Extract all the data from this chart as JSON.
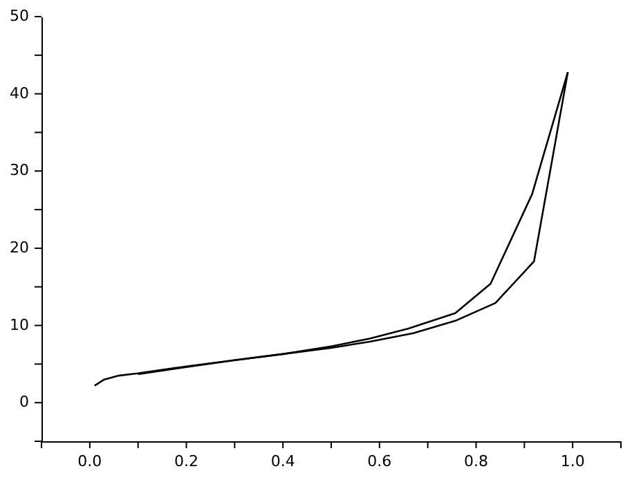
{
  "chart_data": {
    "type": "line",
    "series": [
      {
        "color": "#000000",
        "x": [
          0.01,
          0.03,
          0.06,
          0.1,
          0.2,
          0.3,
          0.4,
          0.5,
          0.58,
          0.66,
          0.757,
          0.83,
          0.916,
          0.99
        ],
        "values": [
          2.2,
          3.0,
          3.5,
          3.8,
          4.7,
          5.5,
          6.3,
          7.3,
          8.3,
          9.6,
          11.6,
          15.4,
          27,
          42.8
        ]
      },
      {
        "color": "#000000",
        "x": [
          0.1,
          0.2,
          0.3,
          0.4,
          0.5,
          0.58,
          0.67,
          0.757,
          0.84,
          0.92,
          0.99
        ],
        "values": [
          3.7,
          4.6,
          5.5,
          6.3,
          7.1,
          7.9,
          9.0,
          10.6,
          12.9,
          18.3,
          42.8
        ]
      }
    ],
    "xlim": [
      -0.1,
      1.1
    ],
    "xticks": [
      {
        "value": -0.1,
        "label": null
      },
      {
        "value": 0,
        "label": "0.0"
      },
      {
        "value": 0.1,
        "label": null
      },
      {
        "value": 0.2,
        "label": "0.2"
      },
      {
        "value": 0.3,
        "label": null
      },
      {
        "value": 0.4,
        "label": "0.4"
      },
      {
        "value": 0.5,
        "label": null
      },
      {
        "value": 0.6,
        "label": "0.6"
      },
      {
        "value": 0.7,
        "label": null
      },
      {
        "value": 0.8,
        "label": "0.8"
      },
      {
        "value": 0.9,
        "label": null
      },
      {
        "value": 1,
        "label": "1.0"
      },
      {
        "value": 1.1,
        "label": null
      }
    ],
    "ylim": [
      -5,
      50
    ],
    "yticks": [
      {
        "value": -5,
        "label": null
      },
      0,
      {
        "value": 5,
        "label": null
      },
      10,
      {
        "value": 15,
        "label": null
      },
      20,
      {
        "value": 25,
        "label": null
      },
      30,
      {
        "value": 35,
        "label": null
      },
      40,
      {
        "value": 45,
        "label": null
      },
      50
    ],
    "grid": false,
    "marker": "none",
    "line_style": "solid"
  }
}
